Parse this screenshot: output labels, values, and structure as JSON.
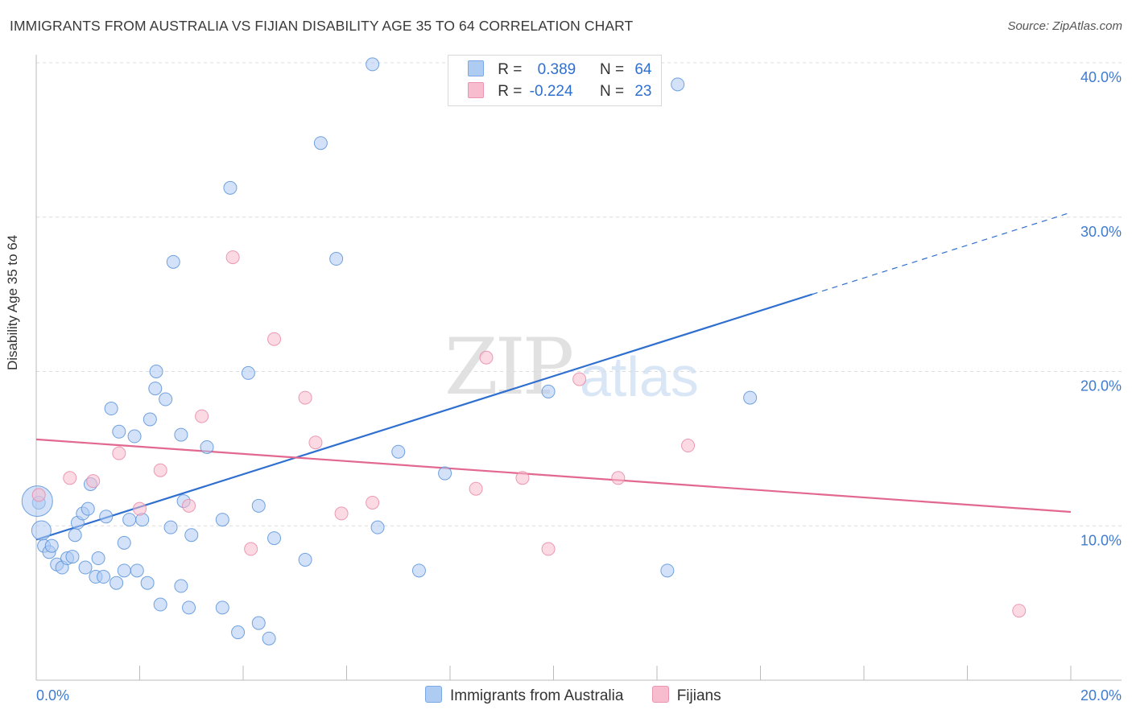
{
  "header": {
    "title": "IMMIGRANTS FROM AUSTRALIA VS FIJIAN DISABILITY AGE 35 TO 64 CORRELATION CHART",
    "source": "Source: ZipAtlas.com"
  },
  "watermark": {
    "zip": "ZIP",
    "atlas": "atlas"
  },
  "legend": {
    "rows": [
      {
        "r_label": "R =",
        "r_value": "0.389",
        "n_label": "N =",
        "n_value": "64",
        "color": "#aecbf2"
      },
      {
        "r_label": "R =",
        "r_value": "-0.224",
        "n_label": "N =",
        "n_value": "23",
        "color": "#f7bccd"
      }
    ]
  },
  "bottom_legend": {
    "items": [
      {
        "label": "Immigrants from Australia",
        "color": "#aecbf2"
      },
      {
        "label": "Fijians",
        "color": "#f7bccd"
      }
    ]
  },
  "chart_data": {
    "type": "scatter",
    "title": "IMMIGRANTS FROM AUSTRALIA VS FIJIAN DISABILITY AGE 35 TO 64 CORRELATION CHART",
    "ylabel": "Disability Age 35 to 64",
    "xlabel": "",
    "xlim": [
      0,
      20
    ],
    "ylim": [
      0,
      40
    ],
    "x_tick_labels": [
      "0.0%",
      "20.0%"
    ],
    "y_tick_labels": [
      "10.0%",
      "20.0%",
      "30.0%",
      "40.0%"
    ],
    "y_ticks": [
      10,
      20,
      30,
      40
    ],
    "grid": true,
    "series": [
      {
        "name": "Immigrants from Australia",
        "color": "#5b93d9",
        "fill": "#aecbf2",
        "trend": {
          "x": [
            0,
            15
          ],
          "y": [
            9.1,
            25
          ],
          "dashed_to": [
            20,
            30.3
          ],
          "color": "#2f6fcf"
        },
        "points": [
          [
            0.05,
            11.5
          ],
          [
            0.1,
            9.7
          ],
          [
            0.15,
            8.7
          ],
          [
            0.25,
            8.3
          ],
          [
            0.3,
            8.7
          ],
          [
            0.4,
            7.5
          ],
          [
            0.5,
            7.3
          ],
          [
            0.6,
            7.9
          ],
          [
            0.7,
            8.0
          ],
          [
            0.75,
            9.4
          ],
          [
            0.8,
            10.2
          ],
          [
            0.9,
            10.8
          ],
          [
            0.95,
            7.3
          ],
          [
            1.0,
            11.1
          ],
          [
            1.05,
            12.7
          ],
          [
            1.15,
            6.7
          ],
          [
            1.2,
            7.9
          ],
          [
            1.3,
            6.7
          ],
          [
            1.35,
            10.6
          ],
          [
            1.45,
            17.6
          ],
          [
            1.55,
            6.3
          ],
          [
            1.6,
            16.1
          ],
          [
            1.7,
            7.1
          ],
          [
            1.7,
            8.9
          ],
          [
            1.8,
            10.4
          ],
          [
            1.9,
            15.8
          ],
          [
            1.95,
            7.1
          ],
          [
            2.05,
            10.4
          ],
          [
            2.15,
            6.3
          ],
          [
            2.2,
            16.9
          ],
          [
            2.3,
            18.9
          ],
          [
            2.32,
            20.0
          ],
          [
            2.4,
            4.9
          ],
          [
            2.5,
            18.2
          ],
          [
            2.6,
            9.9
          ],
          [
            2.65,
            27.1
          ],
          [
            2.8,
            15.9
          ],
          [
            2.8,
            6.1
          ],
          [
            2.85,
            11.6
          ],
          [
            2.95,
            4.7
          ],
          [
            3.0,
            9.4
          ],
          [
            3.3,
            15.1
          ],
          [
            3.6,
            4.7
          ],
          [
            3.6,
            10.4
          ],
          [
            3.75,
            31.9
          ],
          [
            3.9,
            3.1
          ],
          [
            4.1,
            19.9
          ],
          [
            4.3,
            3.7
          ],
          [
            4.3,
            11.3
          ],
          [
            4.5,
            2.7
          ],
          [
            4.6,
            9.2
          ],
          [
            5.2,
            7.8
          ],
          [
            5.5,
            34.8
          ],
          [
            5.8,
            27.3
          ],
          [
            6.5,
            39.9
          ],
          [
            6.6,
            9.9
          ],
          [
            7.0,
            14.8
          ],
          [
            7.4,
            7.1
          ],
          [
            7.9,
            13.4
          ],
          [
            9.9,
            18.7
          ],
          [
            12.2,
            7.1
          ],
          [
            12.4,
            38.6
          ],
          [
            13.8,
            18.3
          ],
          [
            0.02,
            11.6
          ]
        ]
      },
      {
        "name": "Fijians",
        "color": "#e98aa8",
        "fill": "#f7bccd",
        "trend": {
          "x": [
            0,
            20
          ],
          "y": [
            15.6,
            10.9
          ],
          "color": "#e2688f"
        },
        "points": [
          [
            0.05,
            12.0
          ],
          [
            0.65,
            13.1
          ],
          [
            1.1,
            12.9
          ],
          [
            1.6,
            14.7
          ],
          [
            2.0,
            11.1
          ],
          [
            2.4,
            13.6
          ],
          [
            2.95,
            11.3
          ],
          [
            3.2,
            17.1
          ],
          [
            3.8,
            27.4
          ],
          [
            4.15,
            8.5
          ],
          [
            4.6,
            22.1
          ],
          [
            5.2,
            18.3
          ],
          [
            5.4,
            15.4
          ],
          [
            5.9,
            10.8
          ],
          [
            6.5,
            11.5
          ],
          [
            8.5,
            12.4
          ],
          [
            8.7,
            20.9
          ],
          [
            9.4,
            13.1
          ],
          [
            9.9,
            8.5
          ],
          [
            10.5,
            19.5
          ],
          [
            11.25,
            13.1
          ],
          [
            12.6,
            15.2
          ],
          [
            19.0,
            4.5
          ]
        ]
      }
    ]
  }
}
